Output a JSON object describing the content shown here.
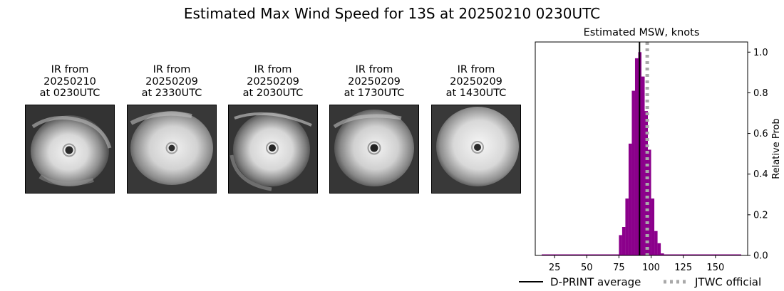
{
  "figure": {
    "title": "Estimated Max Wind Speed for 13S at 20250210 0230UTC"
  },
  "panels": [
    {
      "line1": "IR from",
      "line2": "20250210",
      "line3": "at 0230UTC"
    },
    {
      "line1": "IR from",
      "line2": "20250209",
      "line3": "at 2330UTC"
    },
    {
      "line1": "IR from",
      "line2": "20250209",
      "line3": "at 2030UTC"
    },
    {
      "line1": "IR from",
      "line2": "20250209",
      "line3": "at 1730UTC"
    },
    {
      "line1": "IR from",
      "line2": "20250209",
      "line3": "at 1430UTC"
    }
  ],
  "chart_data": {
    "type": "bar",
    "title": "Estimated MSW, knots",
    "xlabel": "",
    "ylabel": "Relative Prob",
    "xlim": [
      10,
      175
    ],
    "ylim": [
      0,
      1.05
    ],
    "xticks": [
      25,
      50,
      75,
      100,
      125,
      150
    ],
    "yticks": [
      0.0,
      0.2,
      0.4,
      0.6,
      0.8,
      1.0
    ],
    "ytick_labels": [
      "0.0",
      "0.2",
      "0.4",
      "0.6",
      "0.8",
      "1.0"
    ],
    "bar_width": 2.5,
    "bar_color": "#8b008b",
    "bins_x": [
      75,
      77.5,
      80,
      82.5,
      85,
      87.5,
      90,
      92.5,
      95,
      97.5,
      100,
      102.5,
      105,
      107.5
    ],
    "values": [
      0.1,
      0.14,
      0.28,
      0.55,
      0.81,
      0.97,
      1.0,
      0.88,
      0.71,
      0.52,
      0.28,
      0.12,
      0.06,
      0.01
    ],
    "baseline": {
      "from": 15,
      "to": 170
    },
    "dprint_average": 91,
    "jtwc_official": 97,
    "legend": {
      "position": "bottom",
      "dprint_label": "D-PRINT average",
      "jtwc_label": "JTWC official",
      "dprint_color": "#000000",
      "jtwc_color": "#a9a9a9"
    }
  }
}
